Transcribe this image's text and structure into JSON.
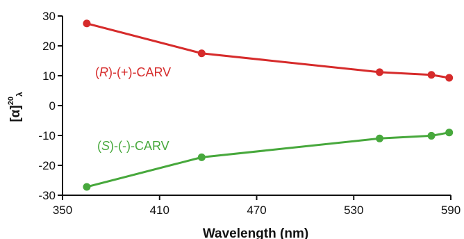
{
  "chart_data": {
    "type": "line",
    "xlabel": "Wavelength (nm)",
    "ylabel": "[α]",
    "ylabel_superscript": "20",
    "ylabel_subscript": "λ",
    "xlim": [
      350,
      590
    ],
    "ylim": [
      -30,
      30
    ],
    "xticks": [
      350,
      410,
      470,
      530,
      590
    ],
    "yticks": [
      30,
      20,
      10,
      0,
      -10,
      -20,
      -30
    ],
    "grid": false,
    "series": [
      {
        "name": "(R)-(+)-CARV",
        "label_parts": [
          "(",
          "R",
          ")-(+)-CARV"
        ],
        "color": "#d62b2b",
        "x": [
          365,
          436,
          546,
          578,
          589
        ],
        "y": [
          27.5,
          17.5,
          11.2,
          10.3,
          9.3
        ]
      },
      {
        "name": "(S)-(-)-CARV",
        "label_parts": [
          "(",
          "S",
          ")-(-)-CARV"
        ],
        "color": "#47a83c",
        "x": [
          365,
          436,
          546,
          578,
          589
        ],
        "y": [
          -27.2,
          -17.3,
          -11.0,
          -10.1,
          -9.0
        ]
      }
    ]
  }
}
